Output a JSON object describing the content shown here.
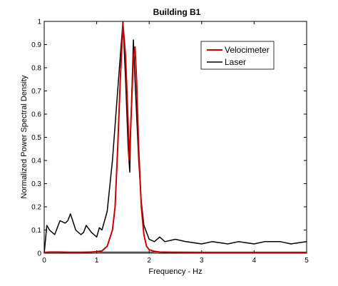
{
  "chart_data": {
    "type": "line",
    "title": "Building B1",
    "xlabel": "Frequency - Hz",
    "ylabel": "Normalized Power Spectral Density",
    "xlim": [
      0,
      5
    ],
    "ylim": [
      0,
      1
    ],
    "xticks": [
      "0",
      "1",
      "2",
      "3",
      "4",
      "5"
    ],
    "yticks": [
      "0",
      "0.1",
      "0.2",
      "0.3",
      "0.4",
      "0.5",
      "0.6",
      "0.7",
      "0.8",
      "0.9",
      "1"
    ],
    "grid": false,
    "legend_position": "top-right",
    "series": [
      {
        "name": "Velocimeter",
        "color": "#cc0000",
        "x": [
          0,
          0.1,
          0.3,
          0.5,
          0.7,
          0.9,
          1.0,
          1.1,
          1.2,
          1.3,
          1.35,
          1.4,
          1.45,
          1.5,
          1.55,
          1.6,
          1.62,
          1.65,
          1.7,
          1.73,
          1.76,
          1.8,
          1.85,
          1.9,
          1.95,
          2.0,
          2.1,
          2.2,
          2.5,
          3.0,
          3.5,
          4.0,
          4.5,
          5.0
        ],
        "y": [
          0.003,
          0.005,
          0.005,
          0.004,
          0.004,
          0.005,
          0.007,
          0.01,
          0.03,
          0.1,
          0.2,
          0.45,
          0.75,
          0.99,
          0.85,
          0.55,
          0.4,
          0.55,
          0.85,
          0.89,
          0.75,
          0.45,
          0.2,
          0.08,
          0.03,
          0.015,
          0.008,
          0.005,
          0.004,
          0.003,
          0.003,
          0.003,
          0.003,
          0.003
        ]
      },
      {
        "name": "Laser",
        "color": "#000000",
        "x": [
          0,
          0.05,
          0.1,
          0.2,
          0.3,
          0.4,
          0.45,
          0.5,
          0.6,
          0.7,
          0.75,
          0.8,
          0.9,
          1.0,
          1.05,
          1.1,
          1.2,
          1.3,
          1.4,
          1.45,
          1.5,
          1.55,
          1.6,
          1.63,
          1.65,
          1.7,
          1.72,
          1.75,
          1.8,
          1.85,
          1.9,
          2.0,
          2.1,
          2.2,
          2.3,
          2.5,
          2.7,
          3.0,
          3.2,
          3.5,
          3.7,
          4.0,
          4.2,
          4.5,
          4.7,
          5.0
        ],
        "y": [
          0.0,
          0.12,
          0.1,
          0.08,
          0.14,
          0.13,
          0.14,
          0.17,
          0.1,
          0.08,
          0.09,
          0.12,
          0.09,
          0.07,
          0.11,
          0.1,
          0.18,
          0.4,
          0.7,
          0.85,
          1.0,
          0.75,
          0.45,
          0.35,
          0.55,
          0.92,
          0.8,
          0.65,
          0.4,
          0.22,
          0.12,
          0.06,
          0.05,
          0.07,
          0.05,
          0.06,
          0.05,
          0.04,
          0.05,
          0.04,
          0.05,
          0.04,
          0.05,
          0.05,
          0.04,
          0.05
        ]
      },
      {
        "name": "",
        "color": "#000000",
        "x": [
          0,
          5
        ],
        "y": [
          0.005,
          0.005
        ]
      }
    ]
  }
}
